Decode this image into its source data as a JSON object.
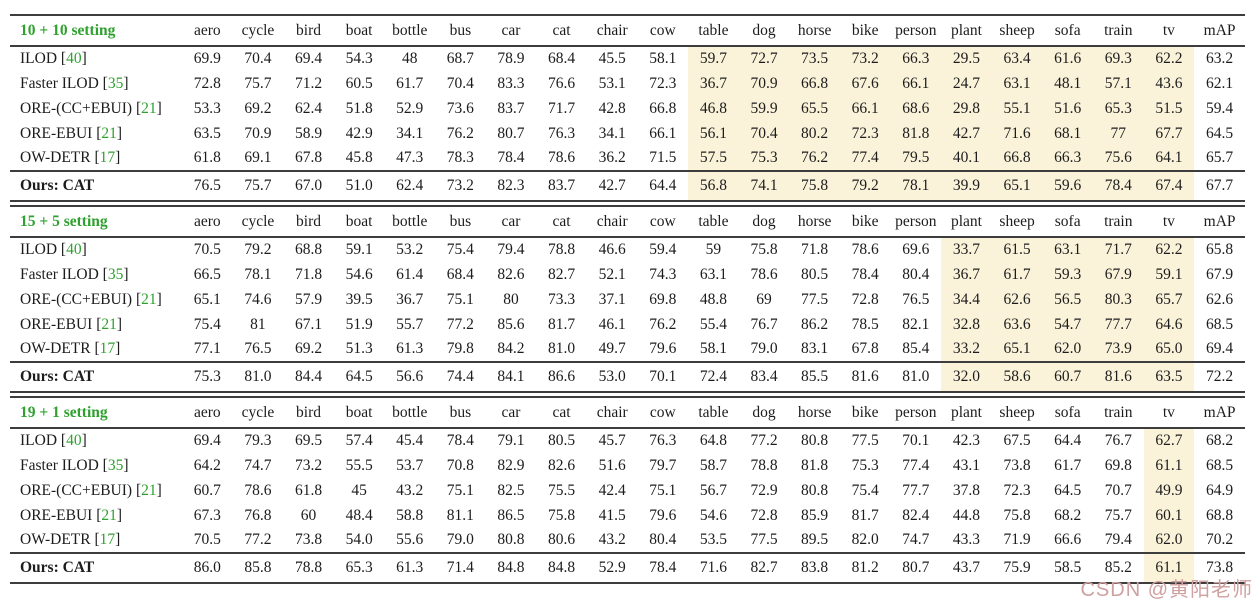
{
  "colors": {
    "accent_green": "#2fa12f",
    "highlight": "#faf3da",
    "rule": "#3d3d3d",
    "watermark": "#cfa0a0"
  },
  "watermark": {
    "text": "CSDN @黄阳老师"
  },
  "table": {
    "columns": [
      "aero",
      "cycle",
      "bird",
      "boat",
      "bottle",
      "bus",
      "car",
      "cat",
      "chair",
      "cow",
      "table",
      "dog",
      "horse",
      "bike",
      "person",
      "plant",
      "sheep",
      "sofa",
      "train",
      "tv",
      "mAP"
    ],
    "sections": [
      {
        "setting": "10 + 10 setting",
        "highlight_range": [
          10,
          19
        ],
        "rows": [
          {
            "method": "ILOD",
            "cite": "40",
            "values": [
              "69.9",
              "70.4",
              "69.4",
              "54.3",
              "48",
              "68.7",
              "78.9",
              "68.4",
              "45.5",
              "58.1",
              "59.7",
              "72.7",
              "73.5",
              "73.2",
              "66.3",
              "29.5",
              "63.4",
              "61.6",
              "69.3",
              "62.2",
              "63.2"
            ]
          },
          {
            "method": "Faster ILOD",
            "cite": "35",
            "values": [
              "72.8",
              "75.7",
              "71.2",
              "60.5",
              "61.7",
              "70.4",
              "83.3",
              "76.6",
              "53.1",
              "72.3",
              "36.7",
              "70.9",
              "66.8",
              "67.6",
              "66.1",
              "24.7",
              "63.1",
              "48.1",
              "57.1",
              "43.6",
              "62.1"
            ]
          },
          {
            "method": "ORE-(CC+EBUI)",
            "cite": "21",
            "values": [
              "53.3",
              "69.2",
              "62.4",
              "51.8",
              "52.9",
              "73.6",
              "83.7",
              "71.7",
              "42.8",
              "66.8",
              "46.8",
              "59.9",
              "65.5",
              "66.1",
              "68.6",
              "29.8",
              "55.1",
              "51.6",
              "65.3",
              "51.5",
              "59.4"
            ]
          },
          {
            "method": "ORE-EBUI",
            "cite": "21",
            "values": [
              "63.5",
              "70.9",
              "58.9",
              "42.9",
              "34.1",
              "76.2",
              "80.7",
              "76.3",
              "34.1",
              "66.1",
              "56.1",
              "70.4",
              "80.2",
              "72.3",
              "81.8",
              "42.7",
              "71.6",
              "68.1",
              "77",
              "67.7",
              "64.5"
            ]
          },
          {
            "method": "OW-DETR",
            "cite": "17",
            "values": [
              "61.8",
              "69.1",
              "67.8",
              "45.8",
              "47.3",
              "78.3",
              "78.4",
              "78.6",
              "36.2",
              "71.5",
              "57.5",
              "75.3",
              "76.2",
              "77.4",
              "79.5",
              "40.1",
              "66.8",
              "66.3",
              "75.6",
              "64.1",
              "65.7"
            ]
          }
        ],
        "ours_row": {
          "method": "Ours: CAT",
          "values": [
            "76.5",
            "75.7",
            "67.0",
            "51.0",
            "62.4",
            "73.2",
            "82.3",
            "83.7",
            "42.7",
            "64.4",
            "56.8",
            "74.1",
            "75.8",
            "79.2",
            "78.1",
            "39.9",
            "65.1",
            "59.6",
            "78.4",
            "67.4",
            "67.7"
          ]
        }
      },
      {
        "setting": "15 + 5 setting",
        "highlight_range": [
          15,
          19
        ],
        "rows": [
          {
            "method": "ILOD",
            "cite": "40",
            "values": [
              "70.5",
              "79.2",
              "68.8",
              "59.1",
              "53.2",
              "75.4",
              "79.4",
              "78.8",
              "46.6",
              "59.4",
              "59",
              "75.8",
              "71.8",
              "78.6",
              "69.6",
              "33.7",
              "61.5",
              "63.1",
              "71.7",
              "62.2",
              "65.8"
            ]
          },
          {
            "method": "Faster ILOD",
            "cite": "35",
            "values": [
              "66.5",
              "78.1",
              "71.8",
              "54.6",
              "61.4",
              "68.4",
              "82.6",
              "82.7",
              "52.1",
              "74.3",
              "63.1",
              "78.6",
              "80.5",
              "78.4",
              "80.4",
              "36.7",
              "61.7",
              "59.3",
              "67.9",
              "59.1",
              "67.9"
            ]
          },
          {
            "method": "ORE-(CC+EBUI)",
            "cite": "21",
            "values": [
              "65.1",
              "74.6",
              "57.9",
              "39.5",
              "36.7",
              "75.1",
              "80",
              "73.3",
              "37.1",
              "69.8",
              "48.8",
              "69",
              "77.5",
              "72.8",
              "76.5",
              "34.4",
              "62.6",
              "56.5",
              "80.3",
              "65.7",
              "62.6"
            ]
          },
          {
            "method": "ORE-EBUI",
            "cite": "21",
            "values": [
              "75.4",
              "81",
              "67.1",
              "51.9",
              "55.7",
              "77.2",
              "85.6",
              "81.7",
              "46.1",
              "76.2",
              "55.4",
              "76.7",
              "86.2",
              "78.5",
              "82.1",
              "32.8",
              "63.6",
              "54.7",
              "77.7",
              "64.6",
              "68.5"
            ]
          },
          {
            "method": "OW-DETR",
            "cite": "17",
            "values": [
              "77.1",
              "76.5",
              "69.2",
              "51.3",
              "61.3",
              "79.8",
              "84.2",
              "81.0",
              "49.7",
              "79.6",
              "58.1",
              "79.0",
              "83.1",
              "67.8",
              "85.4",
              "33.2",
              "65.1",
              "62.0",
              "73.9",
              "65.0",
              "69.4"
            ]
          }
        ],
        "ours_row": {
          "method": "Ours: CAT",
          "values": [
            "75.3",
            "81.0",
            "84.4",
            "64.5",
            "56.6",
            "74.4",
            "84.1",
            "86.6",
            "53.0",
            "70.1",
            "72.4",
            "83.4",
            "85.5",
            "81.6",
            "81.0",
            "32.0",
            "58.6",
            "60.7",
            "81.6",
            "63.5",
            "72.2"
          ]
        }
      },
      {
        "setting": "19 + 1 setting",
        "highlight_range": [
          19,
          19
        ],
        "rows": [
          {
            "method": "ILOD",
            "cite": "40",
            "values": [
              "69.4",
              "79.3",
              "69.5",
              "57.4",
              "45.4",
              "78.4",
              "79.1",
              "80.5",
              "45.7",
              "76.3",
              "64.8",
              "77.2",
              "80.8",
              "77.5",
              "70.1",
              "42.3",
              "67.5",
              "64.4",
              "76.7",
              "62.7",
              "68.2"
            ]
          },
          {
            "method": "Faster ILOD",
            "cite": "35",
            "values": [
              "64.2",
              "74.7",
              "73.2",
              "55.5",
              "53.7",
              "70.8",
              "82.9",
              "82.6",
              "51.6",
              "79.7",
              "58.7",
              "78.8",
              "81.8",
              "75.3",
              "77.4",
              "43.1",
              "73.8",
              "61.7",
              "69.8",
              "61.1",
              "68.5"
            ]
          },
          {
            "method": "ORE-(CC+EBUI)",
            "cite": "21",
            "values": [
              "60.7",
              "78.6",
              "61.8",
              "45",
              "43.2",
              "75.1",
              "82.5",
              "75.5",
              "42.4",
              "75.1",
              "56.7",
              "72.9",
              "80.8",
              "75.4",
              "77.7",
              "37.8",
              "72.3",
              "64.5",
              "70.7",
              "49.9",
              "64.9"
            ]
          },
          {
            "method": "ORE-EBUI",
            "cite": "21",
            "values": [
              "67.3",
              "76.8",
              "60",
              "48.4",
              "58.8",
              "81.1",
              "86.5",
              "75.8",
              "41.5",
              "79.6",
              "54.6",
              "72.8",
              "85.9",
              "81.7",
              "82.4",
              "44.8",
              "75.8",
              "68.2",
              "75.7",
              "60.1",
              "68.8"
            ]
          },
          {
            "method": "OW-DETR",
            "cite": "17",
            "values": [
              "70.5",
              "77.2",
              "73.8",
              "54.0",
              "55.6",
              "79.0",
              "80.8",
              "80.6",
              "43.2",
              "80.4",
              "53.5",
              "77.5",
              "89.5",
              "82.0",
              "74.7",
              "43.3",
              "71.9",
              "66.6",
              "79.4",
              "62.0",
              "70.2"
            ]
          }
        ],
        "ours_row": {
          "method": "Ours: CAT",
          "values": [
            "86.0",
            "85.8",
            "78.8",
            "65.3",
            "61.3",
            "71.4",
            "84.8",
            "84.8",
            "52.9",
            "78.4",
            "71.6",
            "82.7",
            "83.8",
            "81.2",
            "80.7",
            "43.7",
            "75.9",
            "58.5",
            "85.2",
            "61.1",
            "73.8"
          ]
        }
      }
    ]
  }
}
